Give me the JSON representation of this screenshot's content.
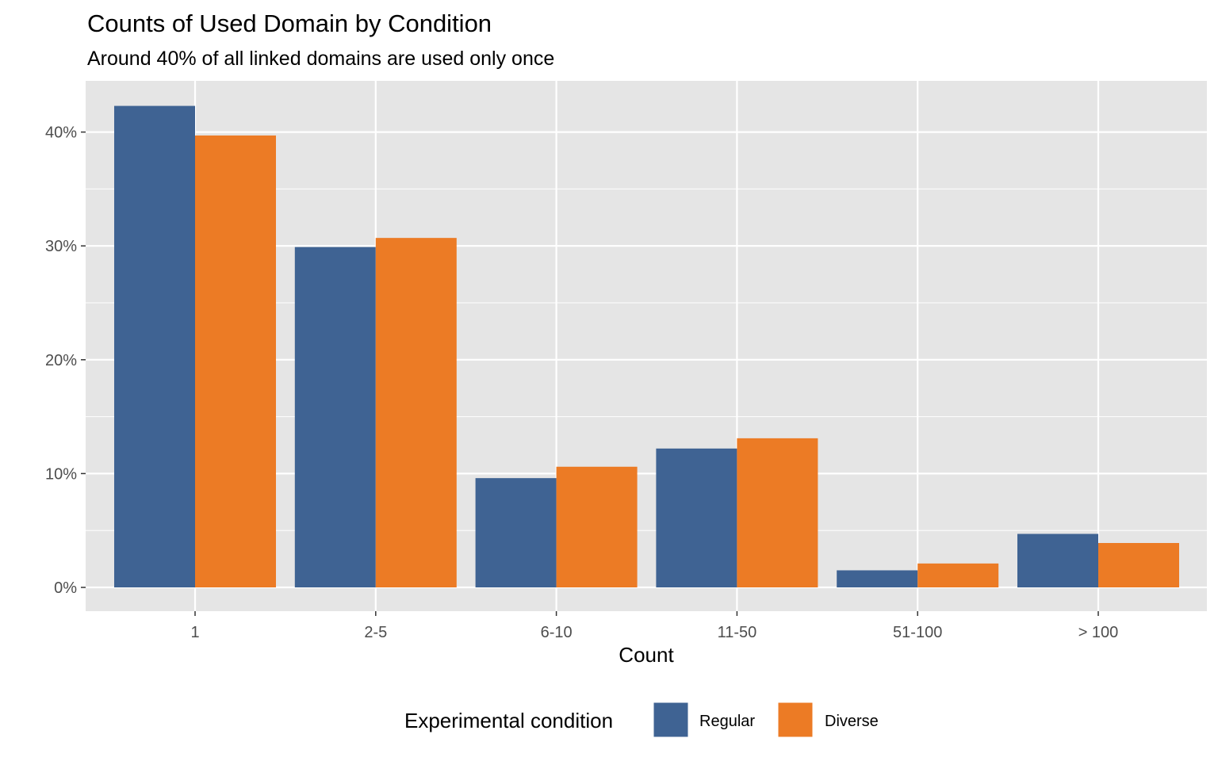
{
  "chart_data": {
    "type": "bar",
    "title": "Counts of Used Domain by Condition",
    "subtitle": "Around 40% of all linked domains are used only once",
    "xlabel": "Count",
    "ylabel": "",
    "categories": [
      "1",
      "2-5",
      "6-10",
      "11-50",
      "51-100",
      "> 100"
    ],
    "series": [
      {
        "name": "Regular",
        "color": "#3f6393",
        "values": [
          42.3,
          29.9,
          9.6,
          12.2,
          1.5,
          4.7
        ]
      },
      {
        "name": "Diverse",
        "color": "#ec7b25",
        "values": [
          39.7,
          30.7,
          10.6,
          13.1,
          2.1,
          3.9
        ]
      }
    ],
    "ylim": [
      0,
      45
    ],
    "y_ticks": [
      {
        "value": 0,
        "label": "0%"
      },
      {
        "value": 10,
        "label": "10%"
      },
      {
        "value": 20,
        "label": "20%"
      },
      {
        "value": 30,
        "label": "30%"
      },
      {
        "value": 40,
        "label": "40%"
      }
    ],
    "y_unit": "percent",
    "grid": true,
    "legend_title": "Experimental condition",
    "legend_position": "bottom",
    "panel_background": "#e5e5e5",
    "gridline_color": "#ffffff"
  }
}
